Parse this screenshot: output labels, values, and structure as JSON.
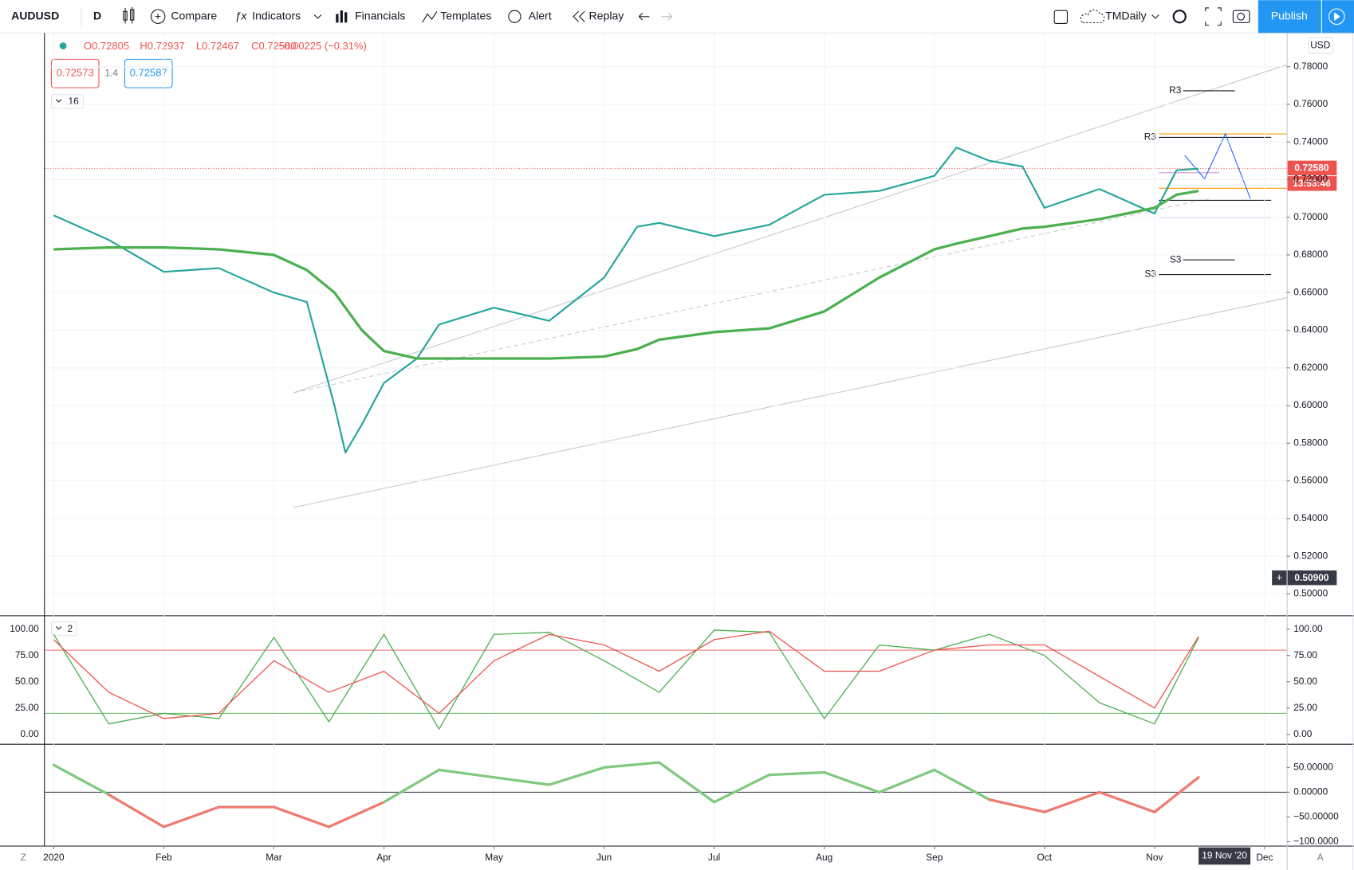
{
  "toolbar": {
    "symbol": "AUDUSD",
    "interval": "D",
    "compare": "Compare",
    "indicators": "Indicators",
    "financials": "Financials",
    "templates": "Templates",
    "alert": "Alert",
    "replay": "Replay",
    "layout": "TMDaily",
    "publish": "Publish"
  },
  "legend": {
    "open": "O0.72805",
    "high": "H0.72937",
    "low": "L0.72467",
    "close": "C0.72580",
    "change": "−0.00225 (−0.31%)",
    "bid": "0.72573",
    "spread": "1.4",
    "ask": "0.72587",
    "indicators_count": "16",
    "oscillator_count": "2",
    "currency": "USD"
  },
  "price_tags": {
    "last": "0.72580",
    "countdown": "13:53:46",
    "crosshair": "0.50900",
    "date": "19 Nov '20"
  },
  "pivots": {
    "r3_weekly": "R3",
    "r3_monthly": "R3",
    "s3_weekly": "S3",
    "s3_monthly": "S3"
  },
  "footer": {
    "left": "Z",
    "right": "A"
  },
  "chart_data": [
    {
      "type": "line",
      "x": [
        0,
        0.5,
        1,
        1.5,
        2,
        2.3,
        2.55,
        2.65,
        2.8,
        3,
        3.3,
        3.5,
        4,
        4.5,
        5,
        5.3,
        5.5,
        6,
        6.5,
        7,
        7.5,
        8,
        8.2,
        8.5,
        8.8,
        9,
        9.5,
        10,
        10.2,
        10.4
      ],
      "series": [
        {
          "color": "#26a69a",
          "values": [
            0.701,
            0.688,
            0.671,
            0.673,
            0.66,
            0.655,
            0.6,
            0.575,
            0.59,
            0.612,
            0.625,
            0.643,
            0.652,
            0.645,
            0.668,
            0.695,
            0.697,
            0.69,
            0.696,
            0.712,
            0.714,
            0.722,
            0.737,
            0.73,
            0.727,
            0.705,
            0.715,
            0.702,
            0.725,
            0.7258
          ]
        },
        {
          "color": "#4caf50",
          "values": [
            0.683,
            0.684,
            0.684,
            0.683,
            0.68,
            0.672,
            0.66,
            0.652,
            0.64,
            0.629,
            0.625,
            0.625,
            0.625,
            0.625,
            0.626,
            0.63,
            0.635,
            0.639,
            0.641,
            0.65,
            0.668,
            0.683,
            0.686,
            0.69,
            0.694,
            0.695,
            0.699,
            0.705,
            0.712,
            0.714
          ]
        }
      ],
      "xlim": [
        -0.08,
        11.2
      ],
      "xticks": [
        {
          "value": 0,
          "label": "2020"
        },
        {
          "value": 1,
          "label": "Feb"
        },
        {
          "value": 2,
          "label": "Mar"
        },
        {
          "value": 3,
          "label": "Apr"
        },
        {
          "value": 4,
          "label": "May"
        },
        {
          "value": 5,
          "label": "Jun"
        },
        {
          "value": 6,
          "label": "Jul"
        },
        {
          "value": 7,
          "label": "Aug"
        },
        {
          "value": 8,
          "label": "Sep"
        },
        {
          "value": 9,
          "label": "Oct"
        },
        {
          "value": 10,
          "label": "Nov"
        },
        {
          "value": 11,
          "label": "Dec"
        }
      ],
      "ylim": [
        0.4886,
        0.7979
      ],
      "yticks": [
        {
          "value": 0.5,
          "label": "0.50000"
        },
        {
          "value": 0.52,
          "label": "0.52000"
        },
        {
          "value": 0.54,
          "label": "0.54000"
        },
        {
          "value": 0.56,
          "label": "0.56000"
        },
        {
          "value": 0.58,
          "label": "0.58000"
        },
        {
          "value": 0.6,
          "label": "0.60000"
        },
        {
          "value": 0.62,
          "label": "0.62000"
        },
        {
          "value": 0.64,
          "label": "0.64000"
        },
        {
          "value": 0.66,
          "label": "0.66000"
        },
        {
          "value": 0.68,
          "label": "0.68000"
        },
        {
          "value": 0.7,
          "label": "0.70000"
        },
        {
          "value": 0.72,
          "label": "0.72000"
        },
        {
          "value": 0.74,
          "label": "0.74000"
        },
        {
          "value": 0.76,
          "label": "0.76000"
        },
        {
          "value": 0.78,
          "label": "0.78000"
        }
      ],
      "grid": true
    },
    {
      "type": "line",
      "x": [
        0,
        0.5,
        1,
        1.5,
        2,
        2.5,
        3,
        3.5,
        4,
        4.5,
        5,
        5.5,
        6,
        6.5,
        7,
        7.5,
        8,
        8.5,
        9,
        9.5,
        10,
        10.4
      ],
      "series": [
        {
          "color": "#4caf50",
          "values": [
            95,
            10,
            20,
            15,
            92,
            12,
            95,
            5,
            95,
            97,
            70,
            40,
            99,
            97,
            15,
            85,
            80,
            95,
            75,
            30,
            10,
            92
          ]
        },
        {
          "color": "#ef5350",
          "values": [
            90,
            40,
            15,
            20,
            70,
            40,
            60,
            20,
            70,
            95,
            85,
            60,
            90,
            98,
            60,
            60,
            80,
            85,
            85,
            55,
            25,
            93
          ]
        }
      ],
      "levels": [
        {
          "value": 80,
          "color": "#ef5350"
        },
        {
          "value": 20,
          "color": "#4caf50"
        }
      ],
      "xlim": [
        -0.08,
        11.2
      ],
      "ylim": [
        -9,
        113.1
      ],
      "yticks": [
        {
          "value": 0,
          "label": "0.00"
        },
        {
          "value": 25,
          "label": "25.00"
        },
        {
          "value": 50,
          "label": "50.00"
        },
        {
          "value": 75,
          "label": "75.00"
        },
        {
          "value": 100,
          "label": "100.00"
        }
      ],
      "grid": false
    },
    {
      "type": "line",
      "x": [
        0,
        0.5,
        1,
        1.5,
        2,
        2.5,
        3,
        3.5,
        4,
        4.5,
        5,
        5.5,
        6,
        6.5,
        7,
        7.5,
        8,
        8.5,
        9,
        9.5,
        10,
        10.4
      ],
      "series": [
        {
          "color": "#7fc97f",
          "negative_color": "#ef7a6e",
          "values": [
            55,
            -5,
            -70,
            -30,
            -30,
            -70,
            -20,
            45,
            30,
            15,
            50,
            60,
            -20,
            35,
            40,
            0,
            45,
            -15,
            -40,
            0,
            -40,
            30
          ]
        }
      ],
      "levels": [
        {
          "value": 0,
          "color": "#131722"
        }
      ],
      "xlim": [
        -0.08,
        11.2
      ],
      "ylim": [
        -108,
        97.6
      ],
      "yticks": [
        {
          "value": -100,
          "label": "−100.0000"
        },
        {
          "value": -50,
          "label": "−50.00000"
        },
        {
          "value": 0,
          "label": "0.00000"
        },
        {
          "value": 50,
          "label": "50.00000"
        }
      ],
      "grid": false
    }
  ]
}
